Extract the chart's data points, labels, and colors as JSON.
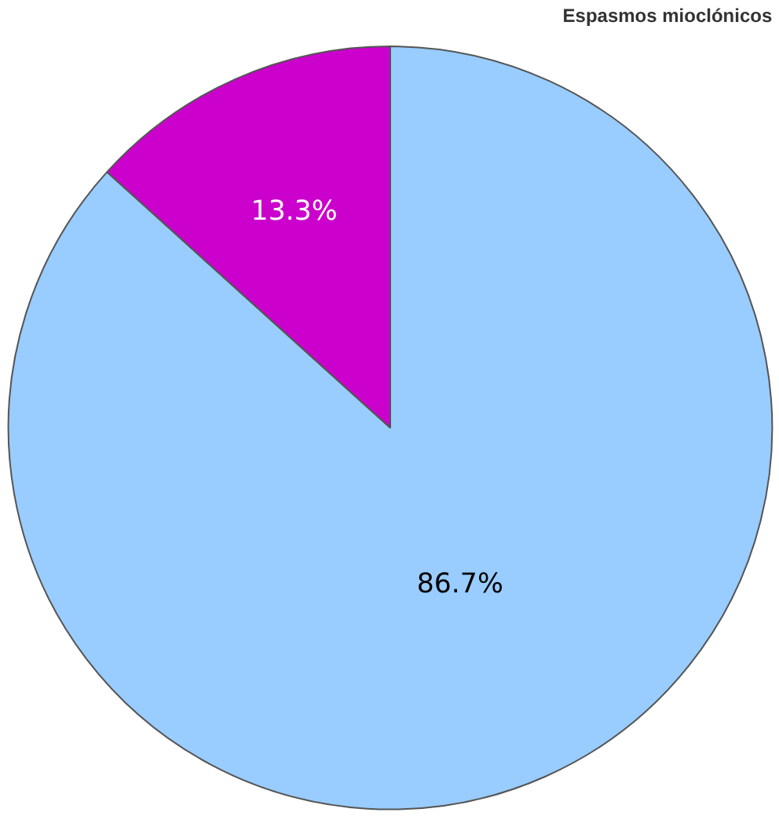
{
  "chart_data": {
    "type": "pie",
    "title": "Espasmos mioclónicos",
    "categories": [
      null,
      null
    ],
    "values": [
      86.7,
      13.3
    ],
    "colors": [
      "#99ccff",
      "#cc00cc"
    ],
    "value_labels": [
      "86.7%",
      "13.3%"
    ]
  }
}
